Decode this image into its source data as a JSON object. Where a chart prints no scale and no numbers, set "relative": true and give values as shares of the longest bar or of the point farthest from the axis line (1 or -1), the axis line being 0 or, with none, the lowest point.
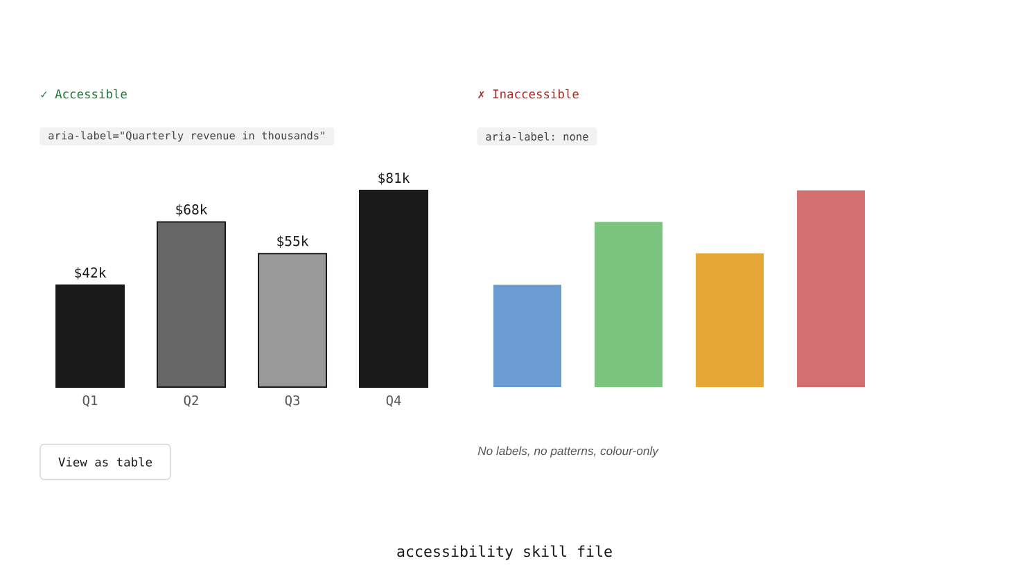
{
  "chart_data": [
    {
      "type": "bar",
      "title": "✓ Accessible",
      "subtitle": "aria-label=\"Quarterly revenue in thousands\"",
      "categories": [
        "Q1",
        "Q2",
        "Q3",
        "Q4"
      ],
      "values": [
        42,
        68,
        55,
        81
      ],
      "value_labels": [
        "$42k",
        "$68k",
        "$55k",
        "$81k"
      ],
      "colors": [
        "#1a1a1a",
        "#666666",
        "#999999",
        "#1a1a1a"
      ],
      "annotations": [
        "View as table",
        "accessibility skill file"
      ]
    },
    {
      "type": "bar",
      "title": "✗ Inaccessible",
      "subtitle": "aria-label: none",
      "categories": [
        null,
        null,
        null,
        null
      ],
      "values": [
        0.52,
        0.84,
        0.68,
        1
      ],
      "relative": true,
      "colors": [
        "#6b9bd0",
        "#7bc47f",
        "#e5a838",
        "#d46f6f"
      ],
      "annotations": [
        "No labels, no patterns, colour-only"
      ]
    }
  ]
}
